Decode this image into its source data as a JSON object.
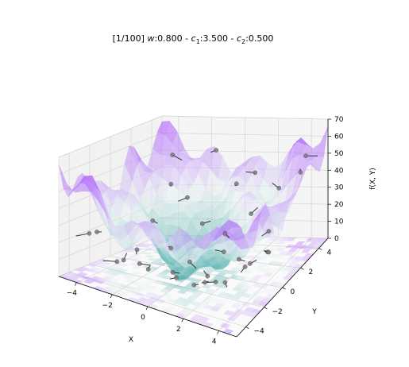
{
  "chart_data": {
    "type": "surface3d",
    "title": {
      "iter": "[1/100]",
      "w_label": "w",
      "w_value": "0.800",
      "c1_label": "c",
      "c1_sub": "1",
      "c1_value": "3.500",
      "c2_label": "c",
      "c2_sub": "2",
      "c2_value": "0.500",
      "sep": " - "
    },
    "xlabel": "X",
    "ylabel": "Y",
    "zlabel": "f(X, Y)",
    "xlim": [
      -5,
      5
    ],
    "ylim": [
      -5,
      5
    ],
    "zlim": [
      0,
      70
    ],
    "xticks": [
      -4,
      -2,
      0,
      2,
      4
    ],
    "yticks": [
      -4,
      -2,
      0,
      2,
      4
    ],
    "zticks": [
      0,
      10,
      20,
      30,
      40,
      50,
      60,
      70
    ],
    "xtick_labels": [
      "−4",
      "−2",
      "0",
      "2",
      "4"
    ],
    "ytick_labels": [
      "−4",
      "−2",
      "0",
      "2",
      "4"
    ],
    "ztick_labels": [
      "0",
      "10",
      "20",
      "30",
      "40",
      "50",
      "60",
      "70"
    ],
    "grid": true,
    "colormap": [
      "#2a9d9a",
      "#e8f2f2",
      "#9b30ff"
    ],
    "particles": [
      {
        "x": -4.3,
        "y": -2.5,
        "z": 22
      },
      {
        "x": -3.6,
        "y": 1.8,
        "z": 18
      },
      {
        "x": -3.1,
        "y": -0.6,
        "z": 9
      },
      {
        "x": -2.8,
        "y": 3.9,
        "z": 26
      },
      {
        "x": -2.4,
        "y": -3.8,
        "z": 14
      },
      {
        "x": -2.0,
        "y": 0.9,
        "z": 7
      },
      {
        "x": -1.7,
        "y": -1.9,
        "z": 5
      },
      {
        "x": -1.2,
        "y": 2.7,
        "z": 16
      },
      {
        "x": -0.9,
        "y": -4.2,
        "z": 19
      },
      {
        "x": -0.5,
        "y": 0.2,
        "z": 4
      },
      {
        "x": -0.1,
        "y": 4.3,
        "z": 34
      },
      {
        "x": 0.3,
        "y": -2.6,
        "z": 8
      },
      {
        "x": 0.7,
        "y": 1.6,
        "z": 6
      },
      {
        "x": 1.1,
        "y": -0.8,
        "z": 3
      },
      {
        "x": 1.4,
        "y": 3.2,
        "z": 22
      },
      {
        "x": 1.8,
        "y": -3.5,
        "z": 12
      },
      {
        "x": 2.2,
        "y": 0.5,
        "z": 9
      },
      {
        "x": 2.6,
        "y": -1.7,
        "z": 7
      },
      {
        "x": 2.9,
        "y": 2.4,
        "z": 17
      },
      {
        "x": 3.3,
        "y": -4.0,
        "z": 21
      },
      {
        "x": 3.6,
        "y": 1.0,
        "z": 13
      },
      {
        "x": 3.9,
        "y": 4.0,
        "z": 44
      },
      {
        "x": 4.3,
        "y": -2.2,
        "z": 25
      },
      {
        "x": 4.6,
        "y": 3.3,
        "z": 58
      },
      {
        "x": -4.0,
        "y": 4.4,
        "z": 49
      },
      {
        "x": -3.3,
        "y": 3.1,
        "z": 36
      },
      {
        "x": -1.5,
        "y": 4.6,
        "z": 52
      },
      {
        "x": 0.9,
        "y": 4.5,
        "z": 40
      },
      {
        "x": 2.5,
        "y": 4.2,
        "z": 33
      },
      {
        "x": -2.6,
        "y": -2.8,
        "z": 11
      },
      {
        "x": 1.6,
        "y": -2.0,
        "z": 6
      },
      {
        "x": -0.8,
        "y": -1.0,
        "z": 2
      },
      {
        "x": 0.2,
        "y": 2.6,
        "z": 12
      },
      {
        "x": 3.0,
        "y": -0.3,
        "z": 10
      },
      {
        "x": -3.8,
        "y": -4.1,
        "z": 27
      },
      {
        "x": 4.1,
        "y": 0.2,
        "z": 18
      }
    ]
  }
}
